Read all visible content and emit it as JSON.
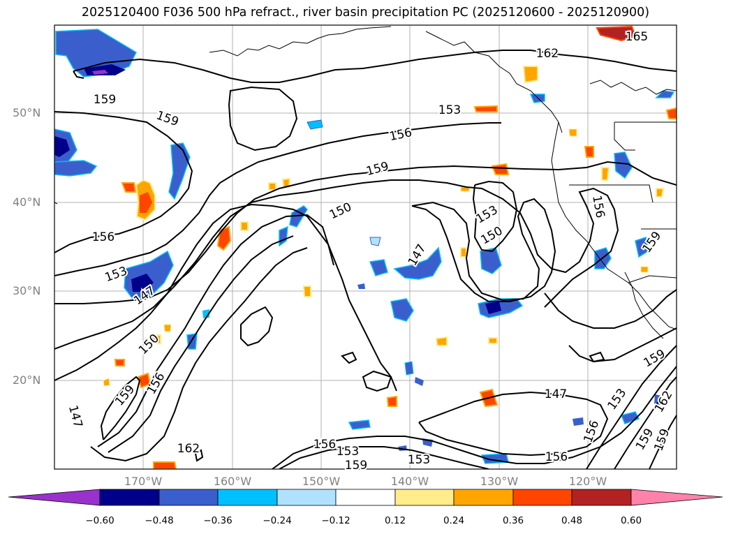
{
  "title": "2025120400 F036 500 hPa refract., river basin precipitation PC (2025120600 - 2025120900)",
  "lat_labels": [
    "50°N",
    "40°N",
    "30°N",
    "20°N"
  ],
  "lon_labels": [
    "170°W",
    "160°W",
    "150°W",
    "140°W",
    "130°W",
    "120°W"
  ],
  "colorbar": {
    "ticks": [
      "−0.60",
      "−0.48",
      "−0.36",
      "−0.24",
      "−0.12",
      "0.12",
      "0.24",
      "0.36",
      "0.48",
      "0.60"
    ],
    "colors": [
      "#9932cc",
      "#00008b",
      "#3a5fcd",
      "#00bfff",
      "#b0e2ff",
      "#ffffff",
      "#ffec8b",
      "#ffa500",
      "#ff4500",
      "#b22222",
      "#ff82ab"
    ]
  },
  "contour_labels": [
    "165",
    "162",
    "159",
    "159",
    "156",
    "153",
    "156",
    "159",
    "150",
    "153",
    "150",
    "147",
    "156",
    "153",
    "147",
    "150",
    "159",
    "156",
    "147",
    "159",
    "153",
    "147",
    "156",
    "162",
    "159",
    "153",
    "156",
    "153",
    "156",
    "159",
    "162",
    "159",
    "159"
  ]
}
